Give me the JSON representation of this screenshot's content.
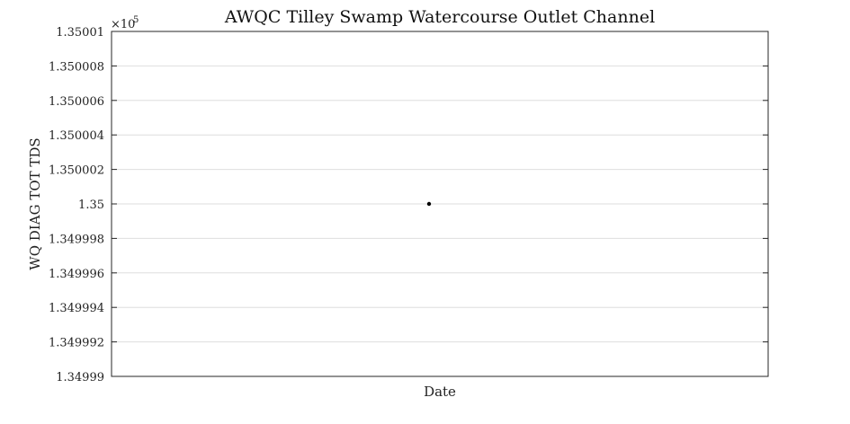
{
  "chart_data": {
    "type": "scatter",
    "title": "AWQC Tilley Swamp Watercourse Outlet Channel",
    "xlabel": "Date",
    "ylabel": "WQ DIAG TOT TDS",
    "exponent_label": "×10",
    "exponent_power": "5",
    "ylim": [
      1.34999,
      1.35001
    ],
    "yticks": [
      1.34999,
      1.349992,
      1.349994,
      1.349996,
      1.349998,
      1.35,
      1.350002,
      1.350004,
      1.350006,
      1.350008,
      1.35001
    ],
    "ytick_labels": [
      "1.34999",
      "1.349992",
      "1.349994",
      "1.349996",
      "1.349998",
      "1.35",
      "1.350002",
      "1.350004",
      "1.350006",
      "1.350008",
      "1.35001"
    ],
    "grid": true,
    "series": [
      {
        "points": [
          {
            "x": null,
            "y": 1.35
          }
        ],
        "color": "#000000"
      }
    ]
  }
}
